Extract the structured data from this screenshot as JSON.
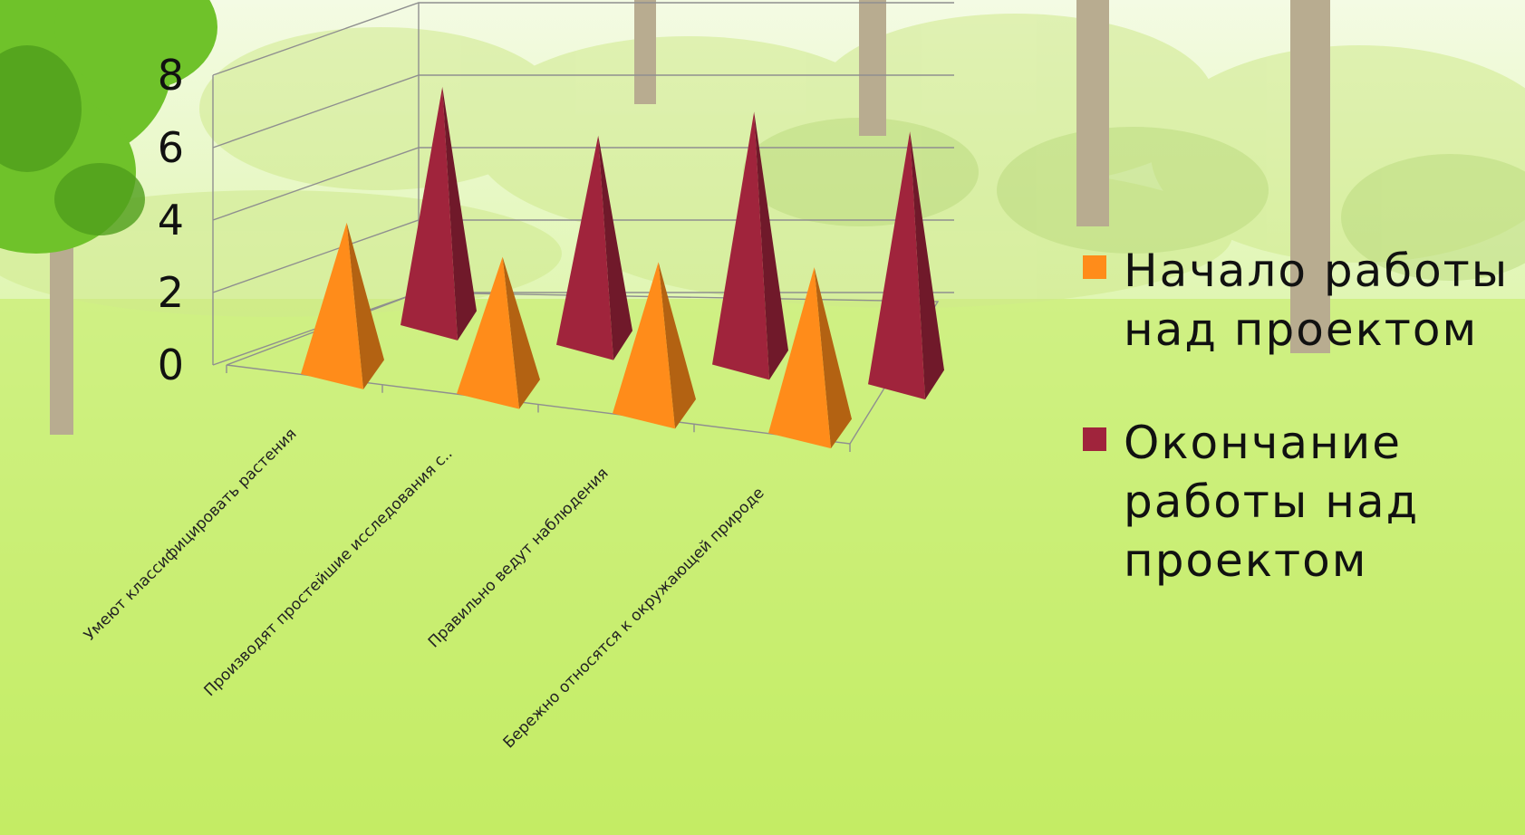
{
  "chart_data": {
    "type": "bar",
    "shape": "pyramid-3d",
    "categories": [
      "Умеют классифицировать  растения",
      "Производят простейшие исследования с..",
      "Правильно  ведут наблюдения",
      "Бережно относятся к окружающей природе"
    ],
    "series": [
      {
        "name": "Начало работы над проектом",
        "legend_lines": [
          "Начало работы",
          "над проектом"
        ],
        "color": "#ff8c1a",
        "values": [
          4,
          3.5,
          4,
          4.5
        ]
      },
      {
        "name": "Окончание работы над проектом",
        "legend_lines": [
          "Окончание",
          "работы над",
          "проектом"
        ],
        "color": "#a0243c",
        "values": [
          7,
          6,
          7.5,
          7.5
        ]
      }
    ],
    "yticks": [
      "0",
      "2",
      "4",
      "6",
      "8"
    ],
    "ylim": [
      0,
      8
    ],
    "grid": true,
    "legend_position": "right"
  }
}
